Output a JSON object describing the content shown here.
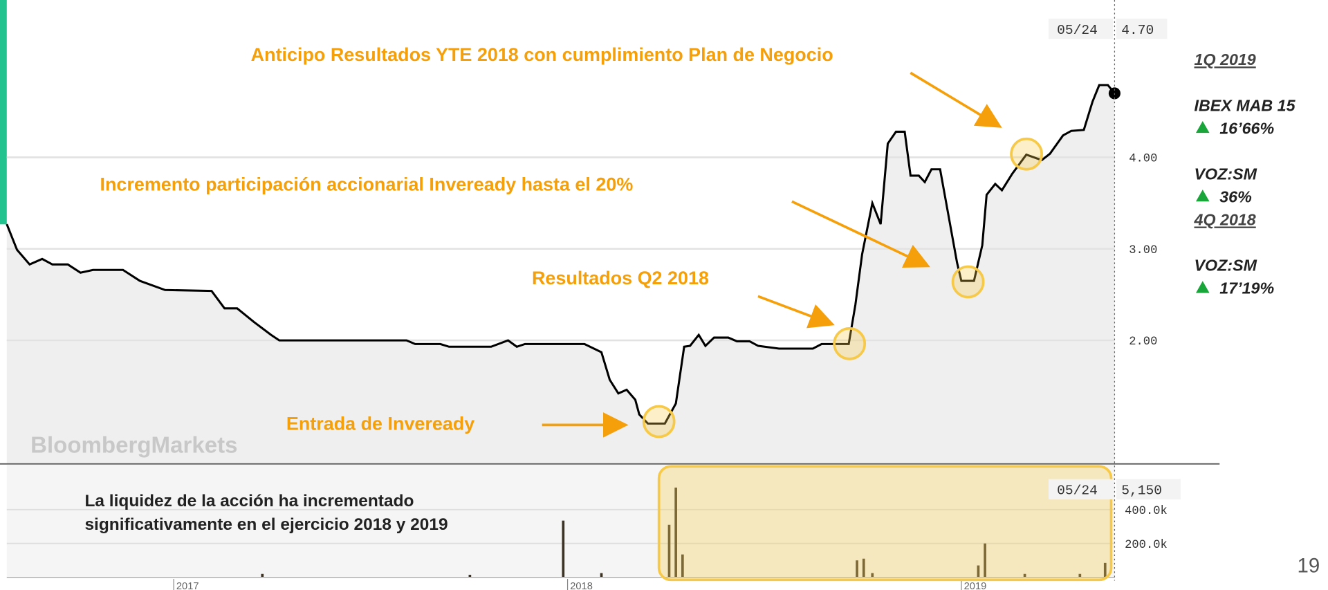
{
  "chart_data": [
    {
      "type": "line",
      "color": "#000000",
      "area_color": "#efefef",
      "xlim": [
        2016.576,
        2019.389
      ],
      "ylim": [
        0.65,
        5.72
      ],
      "yticks": [
        {
          "value": 2,
          "label": "2.00"
        },
        {
          "value": 3,
          "label": "3.00"
        },
        {
          "value": 4,
          "label": "4.00"
        }
      ],
      "grid": true,
      "x": [
        2016.576,
        2016.602,
        2016.634,
        2016.666,
        2016.692,
        2016.731,
        2016.763,
        2016.795,
        2016.871,
        2016.914,
        2016.978,
        2017.096,
        2017.129,
        2017.161,
        2017.204,
        2017.247,
        2017.268,
        2017.591,
        2017.613,
        2017.677,
        2017.699,
        2017.806,
        2017.849,
        2017.871,
        2017.892,
        2018.043,
        2018.086,
        2018.107,
        2018.129,
        2018.15,
        2018.172,
        2018.182,
        2018.204,
        2018.247,
        2018.275,
        2018.296,
        2018.311,
        2018.333,
        2018.35,
        2018.372,
        2018.408,
        2018.43,
        2018.462,
        2018.484,
        2018.537,
        2018.623,
        2018.645,
        2018.714,
        2018.731,
        2018.748,
        2018.774,
        2018.795,
        2018.813,
        2018.834,
        2018.856,
        2018.871,
        2018.892,
        2018.907,
        2018.924,
        2018.946,
        2018.989,
        2019.0,
        2019.032,
        2019.053,
        2019.064,
        2019.086,
        2019.103,
        2019.129,
        2019.165,
        2019.204,
        2019.225,
        2019.258,
        2019.279,
        2019.311,
        2019.333,
        2019.35,
        2019.372,
        2019.389
      ],
      "values": [
        3.27,
        2.99,
        2.83,
        2.89,
        2.83,
        2.83,
        2.74,
        2.77,
        2.77,
        2.65,
        2.55,
        2.54,
        2.35,
        2.35,
        2.2,
        2.06,
        2.0,
        2.0,
        1.96,
        1.96,
        1.93,
        1.93,
        2.0,
        1.93,
        1.96,
        1.96,
        1.87,
        1.57,
        1.42,
        1.46,
        1.35,
        1.19,
        1.09,
        1.09,
        1.31,
        1.93,
        1.94,
        2.06,
        1.94,
        2.03,
        2.03,
        1.99,
        1.99,
        1.94,
        1.91,
        1.91,
        1.96,
        1.96,
        2.39,
        2.94,
        3.5,
        3.27,
        4.15,
        4.28,
        4.28,
        3.8,
        3.8,
        3.73,
        3.87,
        3.87,
        2.85,
        2.65,
        2.65,
        3.04,
        3.59,
        3.71,
        3.64,
        3.82,
        4.03,
        3.97,
        4.04,
        4.24,
        4.29,
        4.3,
        4.61,
        4.79,
        4.79,
        4.7
      ],
      "current": {
        "date": "05/24",
        "value": 4.7,
        "label": "4.70"
      },
      "annotation_color": "#f5a00a",
      "annotations": [
        "Anticipo Resultados YTE 2018 con cumplimiento Plan de Negocio",
        "Incremento participación accionarial Inveready hasta el 20%",
        "Resultados Q2 2018",
        "Entrada de Inveready"
      ],
      "watermark": "BloombergMarkets"
    },
    {
      "type": "bar",
      "color": "#3d3324",
      "xlim": [
        2016.576,
        2019.389
      ],
      "xticks": [
        2017,
        2018,
        2019
      ],
      "ylim": [
        0,
        670000
      ],
      "yticks": [
        {
          "value": 200000,
          "label": "200.0k"
        },
        {
          "value": 400000,
          "label": "400.0k"
        }
      ],
      "grid": true,
      "x": [
        2017.225,
        2017.752,
        2017.989,
        2018.086,
        2018.258,
        2018.275,
        2018.292,
        2018.735,
        2018.752,
        2018.774,
        2019.043,
        2019.06,
        2019.161,
        2019.301,
        2019.365
      ],
      "values": [
        20000,
        15000,
        335000,
        25000,
        310000,
        530000,
        135000,
        100000,
        110000,
        25000,
        70000,
        200000,
        20000,
        20000,
        85000
      ],
      "current": {
        "date": "05/24",
        "value": 5150,
        "label": "5,150"
      },
      "annotation": [
        "La liquidez de la acción ha incrementado",
        "significativamente en el ejercicio 2018 y 2019"
      ]
    }
  ],
  "sidebar": [
    {
      "heading": "1Q 2019",
      "items": [
        {
          "name": "IBEX MAB 15",
          "change": "16’66%"
        },
        {
          "name": "VOZ:SM",
          "change": "36%"
        }
      ]
    },
    {
      "heading": "4Q 2018",
      "items": [
        {
          "name": "VOZ:SM",
          "change": "17’19%"
        }
      ]
    }
  ],
  "page_number": "19"
}
